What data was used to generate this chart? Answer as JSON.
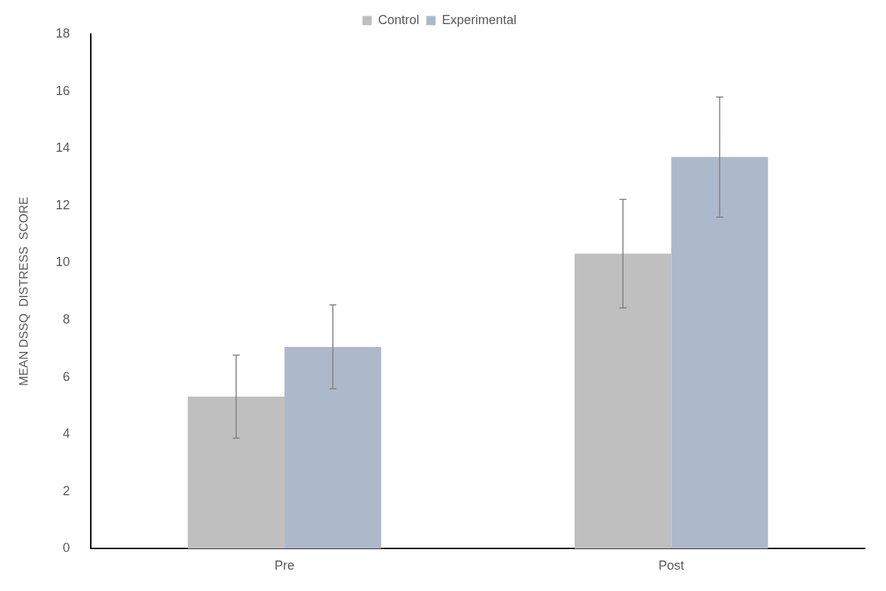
{
  "chart_data": {
    "type": "bar",
    "ylabel": "MEAN DSSQ  DISTRESS  SCORE",
    "categories": [
      "Pre",
      "Post"
    ],
    "series": [
      {
        "name": "Control",
        "color": "#bfbfbf",
        "values": [
          5.32,
          10.32
        ],
        "errors": [
          1.45,
          1.9
        ]
      },
      {
        "name": "Experimental",
        "color": "#adb9ca",
        "values": [
          7.06,
          13.7
        ],
        "errors": [
          1.47,
          2.1
        ]
      }
    ],
    "ylim": [
      0,
      18
    ],
    "yticks": [
      0,
      2,
      4,
      6,
      8,
      10,
      12,
      14,
      16,
      18
    ],
    "grid": false,
    "legend": "top"
  }
}
